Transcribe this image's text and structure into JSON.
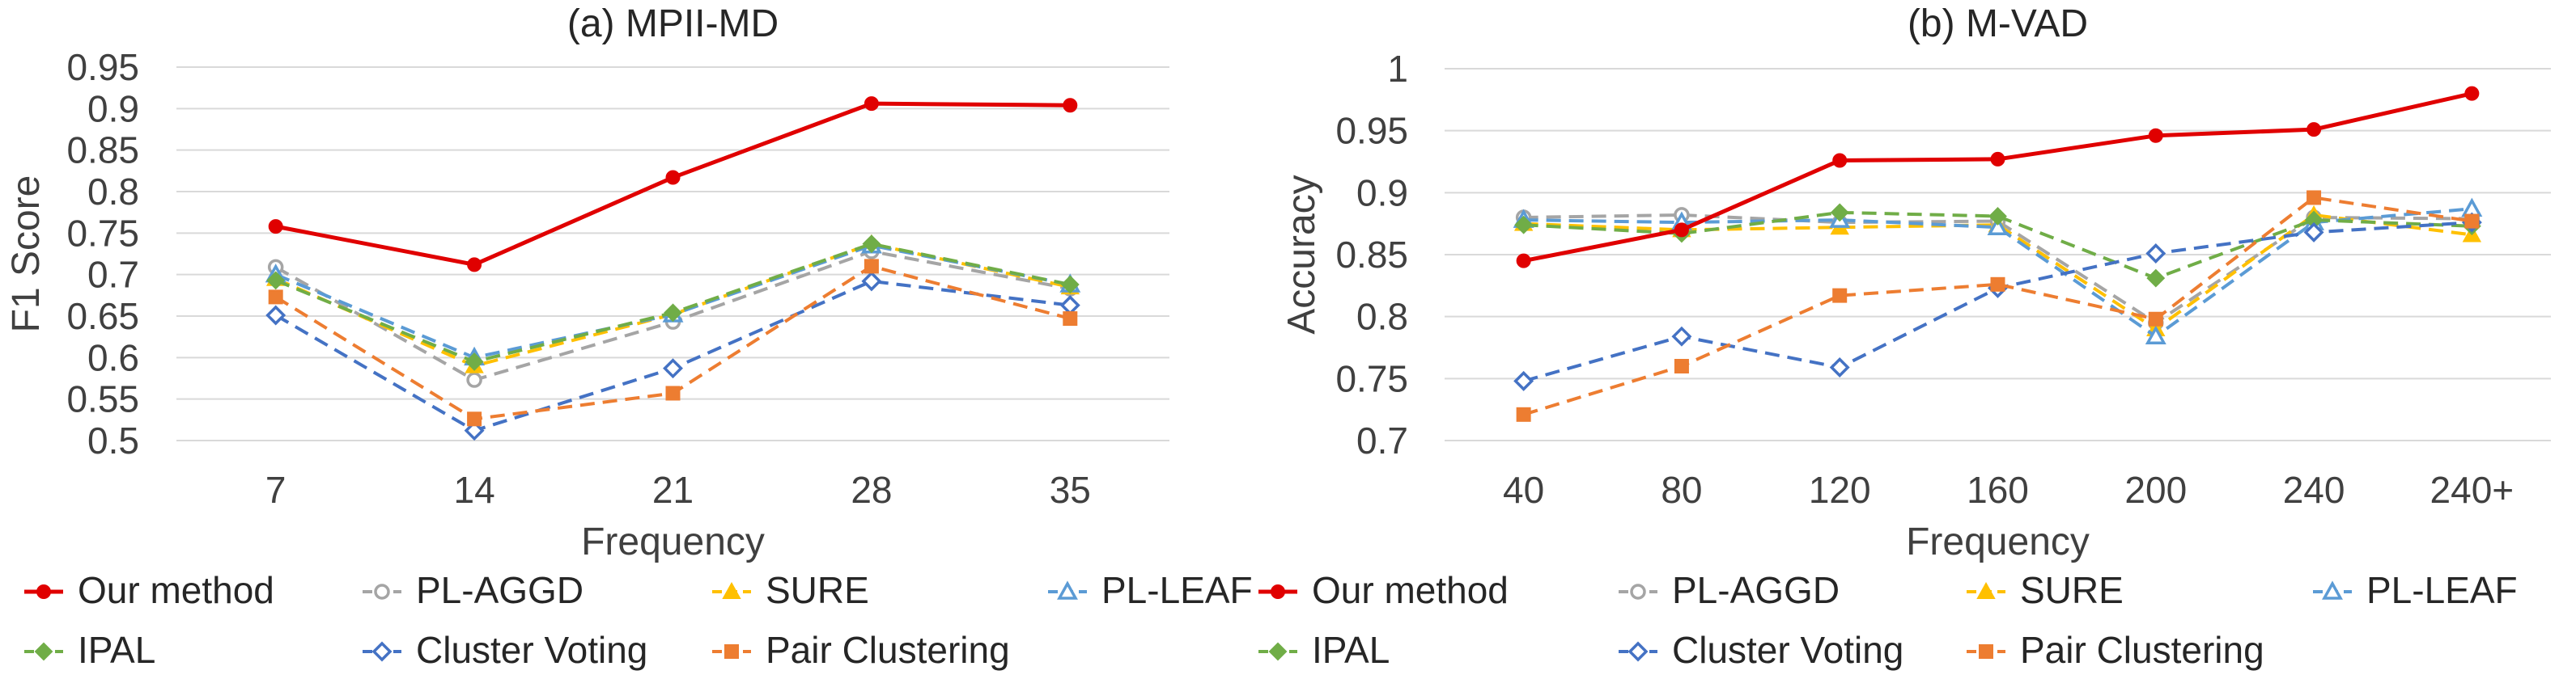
{
  "chart_data": [
    {
      "type": "line",
      "title": "(a) MPII-MD",
      "xlabel": "Frequency",
      "ylabel": "F1 Score",
      "categories": [
        "7",
        "14",
        "21",
        "28",
        "35"
      ],
      "ylim": [
        0.5,
        0.95
      ],
      "yticks": [
        0.5,
        0.55,
        0.6,
        0.65,
        0.7,
        0.75,
        0.8,
        0.85,
        0.9,
        0.95
      ],
      "ytick_labels": [
        "0.5",
        "0.55",
        "0.6",
        "0.65",
        "0.7",
        "0.75",
        "0.8",
        "0.85",
        "0.9",
        "0.95"
      ],
      "grid": true,
      "series": [
        {
          "name": "Our method",
          "values": [
            0.758,
            0.712,
            0.817,
            0.906,
            0.904
          ],
          "color": "#e00000",
          "dash": "solid",
          "marker": "circle-filled"
        },
        {
          "name": "PL-AGGD",
          "values": [
            0.709,
            0.573,
            0.643,
            0.728,
            0.683
          ],
          "color": "#a5a5a5",
          "dash": "dashed",
          "marker": "circle-open"
        },
        {
          "name": "SURE",
          "values": [
            0.695,
            0.59,
            0.652,
            0.737,
            0.685
          ],
          "color": "#ffc000",
          "dash": "dashed",
          "marker": "triangle-filled"
        },
        {
          "name": "PL-LEAF",
          "values": [
            0.7,
            0.6,
            0.652,
            0.735,
            0.688
          ],
          "color": "#5b9bd5",
          "dash": "dashed",
          "marker": "triangle-open"
        },
        {
          "name": "IPAL",
          "values": [
            0.693,
            0.595,
            0.654,
            0.737,
            0.688
          ],
          "color": "#70ad47",
          "dash": "dashed",
          "marker": "diamond-filled"
        },
        {
          "name": "Cluster Voting",
          "values": [
            0.651,
            0.512,
            0.587,
            0.692,
            0.663
          ],
          "color": "#4472c4",
          "dash": "dashed",
          "marker": "diamond-open"
        },
        {
          "name": "Pair Clustering",
          "values": [
            0.673,
            0.526,
            0.557,
            0.71,
            0.647
          ],
          "color": "#ed7d31",
          "dash": "dashed",
          "marker": "square-filled"
        }
      ]
    },
    {
      "type": "line",
      "title": "(b) M-VAD",
      "xlabel": "Frequency",
      "ylabel": "Accuracy",
      "categories": [
        "40",
        "80",
        "120",
        "160",
        "200",
        "240",
        "240+"
      ],
      "ylim": [
        0.7,
        1.0
      ],
      "yticks": [
        0.7,
        0.75,
        0.8,
        0.85,
        0.9,
        0.95,
        1.0
      ],
      "ytick_labels": [
        "0.7",
        "0.75",
        "0.8",
        "0.85",
        "0.9",
        "0.95",
        "1"
      ],
      "grid": true,
      "series": [
        {
          "name": "Our method",
          "values": [
            0.845,
            0.87,
            0.926,
            0.927,
            0.946,
            0.951,
            0.98
          ],
          "color": "#e00000",
          "dash": "solid",
          "marker": "circle-filled"
        },
        {
          "name": "PL-AGGD",
          "values": [
            0.88,
            0.882,
            0.876,
            0.877,
            0.795,
            0.88,
            0.879
          ],
          "color": "#a5a5a5",
          "dash": "dashed",
          "marker": "circle-open"
        },
        {
          "name": "SURE",
          "values": [
            0.875,
            0.87,
            0.872,
            0.874,
            0.79,
            0.882,
            0.866
          ],
          "color": "#ffc000",
          "dash": "dashed",
          "marker": "triangle-filled"
        },
        {
          "name": "PL-LEAF",
          "values": [
            0.878,
            0.876,
            0.878,
            0.872,
            0.784,
            0.876,
            0.887
          ],
          "color": "#5b9bd5",
          "dash": "dashed",
          "marker": "triangle-open"
        },
        {
          "name": "IPAL",
          "values": [
            0.874,
            0.867,
            0.884,
            0.881,
            0.831,
            0.878,
            0.873
          ],
          "color": "#70ad47",
          "dash": "dashed",
          "marker": "diamond-filled"
        },
        {
          "name": "Cluster Voting",
          "values": [
            0.748,
            0.784,
            0.759,
            0.823,
            0.851,
            0.868,
            0.876
          ],
          "color": "#4472c4",
          "dash": "dashed",
          "marker": "diamond-open"
        },
        {
          "name": "Pair Clustering",
          "values": [
            0.721,
            0.76,
            0.817,
            0.826,
            0.798,
            0.896,
            0.877
          ],
          "color": "#ed7d31",
          "dash": "dashed",
          "marker": "square-filled"
        }
      ]
    }
  ]
}
